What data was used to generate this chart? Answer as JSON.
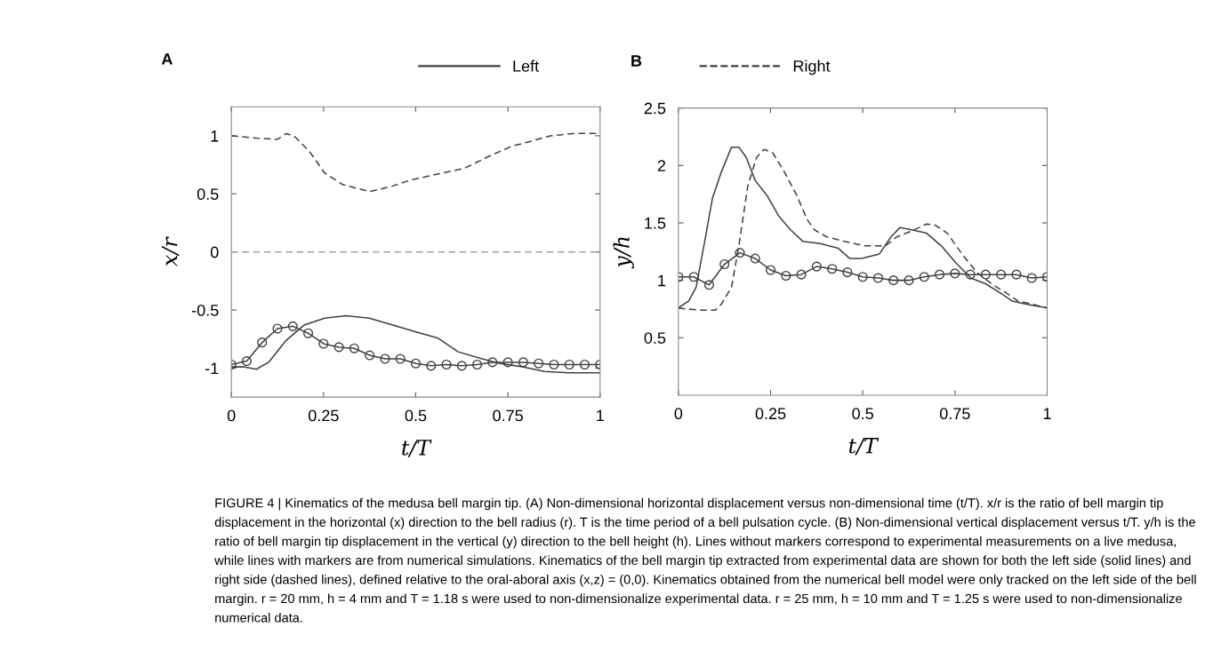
{
  "chart_data": [
    {
      "type": "line",
      "title": "A",
      "xlabel": "t/T",
      "ylabel": "x/r",
      "xlim": [
        0,
        1
      ],
      "ylim": [
        -1.25,
        1.25
      ],
      "xticks": [
        0,
        0.25,
        0.5,
        0.75,
        1
      ],
      "yticks": [
        -1,
        -0.5,
        0,
        0.5,
        1
      ],
      "grid": false,
      "legend": "top",
      "ref_lines": [
        {
          "axis": "y",
          "value": 0,
          "color": "#a0a0a0",
          "line_style": "dashed"
        }
      ],
      "series": [
        {
          "name": "Left",
          "color": "#404040",
          "line_style": "solid",
          "marker": "none",
          "x": [
            0,
            0.036,
            0.068,
            0.101,
            0.149,
            0.197,
            0.253,
            0.31,
            0.374,
            0.438,
            0.503,
            0.559,
            0.615,
            0.68,
            0.728,
            0.792,
            0.849,
            0.913,
            1
          ],
          "values": [
            -0.99,
            -0.99,
            -1.01,
            -0.95,
            -0.76,
            -0.63,
            -0.57,
            -0.55,
            -0.57,
            -0.63,
            -0.69,
            -0.74,
            -0.86,
            -0.92,
            -0.96,
            -0.99,
            -1.03,
            -1.04,
            -1.04
          ]
        },
        {
          "name": "Right",
          "color": "#404040",
          "line_style": "dashed",
          "marker": "none",
          "x": [
            0,
            0.036,
            0.068,
            0.125,
            0.149,
            0.173,
            0.213,
            0.253,
            0.302,
            0.374,
            0.43,
            0.487,
            0.559,
            0.632,
            0.696,
            0.76,
            0.809,
            0.865,
            0.929,
            1
          ],
          "values": [
            1.0,
            0.99,
            0.98,
            0.97,
            1.02,
            0.99,
            0.86,
            0.68,
            0.58,
            0.52,
            0.56,
            0.62,
            0.67,
            0.72,
            0.82,
            0.91,
            0.95,
            1.0,
            1.02,
            1.02
          ]
        },
        {
          "color": "#404040",
          "line_style": "solid",
          "marker": "circle",
          "x": [
            0,
            0.0417,
            0.0833,
            0.125,
            0.1667,
            0.2083,
            0.25,
            0.2917,
            0.3333,
            0.375,
            0.4167,
            0.4583,
            0.5,
            0.5417,
            0.5833,
            0.625,
            0.6667,
            0.7083,
            0.75,
            0.7917,
            0.8333,
            0.875,
            0.9167,
            0.9583,
            1
          ],
          "values": [
            -0.97,
            -0.94,
            -0.78,
            -0.66,
            -0.64,
            -0.7,
            -0.79,
            -0.82,
            -0.83,
            -0.89,
            -0.92,
            -0.92,
            -0.96,
            -0.98,
            -0.97,
            -0.98,
            -0.97,
            -0.95,
            -0.95,
            -0.95,
            -0.96,
            -0.97,
            -0.97,
            -0.97,
            -0.97
          ]
        }
      ],
      "annotations": [
        "FIGURE 4 | Kinematics of the medusa bell margin tip. (A) Non-dimensional horizontal displacement versus non-dimensional time (t/T). x/r is the ratio of bell margin tip displacement in the horizontal (x) direction to the bell radius (r). T is the time period of a bell pulsation cycle. (B) Non-dimensional vertical displacement versus t/T. y/h is the ratio of bell margin tip displacement in the vertical (y) direction to the bell height (h). Lines without markers correspond to experimental measurements on a live medusa, while lines with markers are from numerical simulations. Kinematics of the bell margin tip extracted from experimental data are shown for both the left side (solid lines) and right side (dashed lines), defined relative to the oral-aboral axis (x,z) = (0,0). Kinematics obtained from the numerical bell model were only tracked on the left side of the bell margin. r = 20 mm, h = 4 mm and T = 1.18 s were used to non-dimensionalize experimental data. r = 25 mm, h = 10 mm and T = 1.25 s were used to non-dimensionalize numerical data."
      ]
    },
    {
      "type": "line",
      "title": "B",
      "xlabel": "t/T",
      "ylabel": "y/h",
      "xlim": [
        0,
        1
      ],
      "ylim": [
        0,
        2.5
      ],
      "xticks": [
        0,
        0.25,
        0.5,
        0.75,
        1
      ],
      "yticks": [
        0.5,
        1,
        1.5,
        2,
        2.5
      ],
      "grid": false,
      "series": [
        {
          "color": "#404040",
          "line_style": "solid",
          "marker": "none",
          "x": [
            0,
            0.028,
            0.048,
            0.072,
            0.092,
            0.116,
            0.144,
            0.164,
            0.184,
            0.208,
            0.24,
            0.272,
            0.304,
            0.337,
            0.385,
            0.433,
            0.465,
            0.497,
            0.545,
            0.577,
            0.601,
            0.633,
            0.673,
            0.713,
            0.753,
            0.793,
            0.833,
            0.873,
            0.905,
            0.946,
            1
          ],
          "values": [
            0.76,
            0.82,
            0.94,
            1.35,
            1.71,
            1.94,
            2.16,
            2.16,
            2.07,
            1.87,
            1.74,
            1.56,
            1.44,
            1.34,
            1.32,
            1.28,
            1.19,
            1.19,
            1.23,
            1.38,
            1.46,
            1.44,
            1.41,
            1.3,
            1.15,
            1.02,
            0.97,
            0.89,
            0.82,
            0.79,
            0.76
          ]
        },
        {
          "color": "#404040",
          "line_style": "dashed",
          "marker": "none",
          "x": [
            0,
            0.024,
            0.064,
            0.1,
            0.116,
            0.144,
            0.164,
            0.188,
            0.212,
            0.232,
            0.256,
            0.288,
            0.321,
            0.349,
            0.369,
            0.401,
            0.449,
            0.505,
            0.561,
            0.593,
            0.633,
            0.673,
            0.697,
            0.729,
            0.769,
            0.809,
            0.849,
            0.889,
            0.921,
            0.962,
            1
          ],
          "values": [
            0.76,
            0.75,
            0.74,
            0.74,
            0.79,
            0.94,
            1.3,
            1.82,
            2.07,
            2.14,
            2.11,
            1.94,
            1.74,
            1.53,
            1.44,
            1.38,
            1.34,
            1.3,
            1.3,
            1.38,
            1.43,
            1.49,
            1.48,
            1.41,
            1.23,
            1.07,
            0.97,
            0.89,
            0.82,
            0.79,
            0.76
          ]
        },
        {
          "color": "#404040",
          "line_style": "solid",
          "marker": "circle",
          "x": [
            0,
            0.0417,
            0.0833,
            0.125,
            0.1667,
            0.2083,
            0.25,
            0.2917,
            0.3333,
            0.375,
            0.4167,
            0.4583,
            0.5,
            0.5417,
            0.5833,
            0.625,
            0.6667,
            0.7083,
            0.75,
            0.7917,
            0.8333,
            0.875,
            0.9167,
            0.9583,
            1
          ],
          "values": [
            1.03,
            1.03,
            0.96,
            1.14,
            1.24,
            1.19,
            1.09,
            1.04,
            1.05,
            1.12,
            1.1,
            1.07,
            1.03,
            1.02,
            1.0,
            1.0,
            1.03,
            1.05,
            1.06,
            1.05,
            1.05,
            1.05,
            1.05,
            1.02,
            1.03
          ]
        }
      ]
    }
  ]
}
